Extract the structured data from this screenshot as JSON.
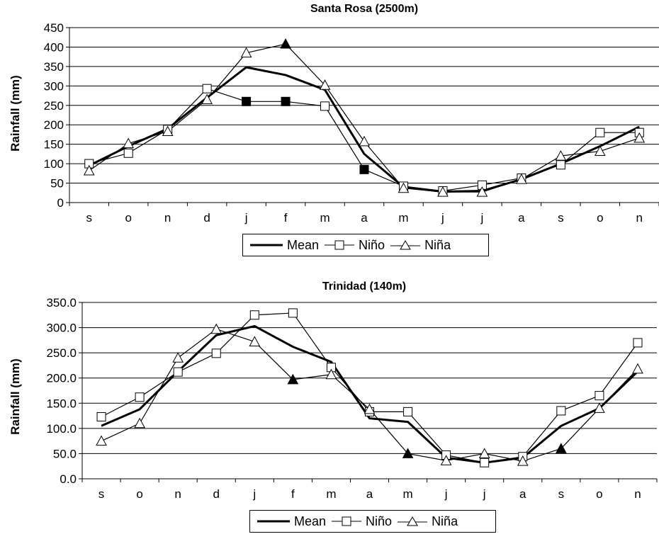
{
  "chart_data": [
    {
      "type": "line",
      "title": "Santa Rosa  (2500m)",
      "ylabel": "Rainfall (mm)",
      "xlabel": "",
      "categories": [
        "s",
        "o",
        "n",
        "d",
        "j",
        "f",
        "m",
        "a",
        "m",
        "j",
        "j",
        "a",
        "s",
        "o",
        "n"
      ],
      "ylim": [
        0,
        450
      ],
      "yticks": [
        0,
        50,
        100,
        150,
        200,
        250,
        300,
        350,
        400,
        450
      ],
      "ytick_labels": [
        "0",
        "50",
        "100",
        "150",
        "200",
        "250",
        "300",
        "350",
        "400",
        "450"
      ],
      "grid": true,
      "legend_position": "bottom",
      "series": [
        {
          "name": "Mean",
          "marker": "none",
          "values": [
            95,
            145,
            190,
            270,
            348,
            328,
            290,
            125,
            40,
            28,
            30,
            60,
            100,
            145,
            195
          ]
        },
        {
          "name": "Niño",
          "marker": "square",
          "values": [
            100,
            127,
            188,
            293,
            260,
            260,
            248,
            85,
            42,
            30,
            45,
            63,
            97,
            180,
            180
          ],
          "filled_indices": [
            4,
            5,
            7
          ]
        },
        {
          "name": "Niña",
          "marker": "triangle",
          "values": [
            82,
            152,
            183,
            265,
            385,
            408,
            302,
            157,
            37,
            27,
            27,
            60,
            120,
            132,
            166
          ],
          "filled_indices": [
            5
          ]
        }
      ]
    },
    {
      "type": "line",
      "title": "Trinidad (140m)",
      "ylabel": "Rainfall (mm)",
      "xlabel": "",
      "categories": [
        "s",
        "o",
        "n",
        "d",
        "j",
        "f",
        "m",
        "a",
        "m",
        "j",
        "j",
        "a",
        "s",
        "o",
        "n"
      ],
      "ylim": [
        0,
        350
      ],
      "yticks": [
        0,
        50,
        100,
        150,
        200,
        250,
        300,
        350
      ],
      "ytick_labels": [
        "0.0",
        "50.0",
        "100.0",
        "150.0",
        "200.0",
        "250.0",
        "300.0",
        "350.0"
      ],
      "grid": true,
      "legend_position": "bottom",
      "series": [
        {
          "name": "Mean",
          "marker": "none",
          "values": [
            105,
            138,
            213,
            285,
            303,
            262,
            232,
            120,
            113,
            42,
            32,
            42,
            105,
            140,
            213
          ]
        },
        {
          "name": "Niño",
          "marker": "square",
          "values": [
            123,
            162,
            212,
            249,
            325,
            329,
            221,
            133,
            133,
            47,
            32,
            44,
            135,
            165,
            270
          ],
          "filled_indices": []
        },
        {
          "name": "Niña",
          "marker": "triangle",
          "values": [
            75,
            110,
            240,
            297,
            272,
            197,
            207,
            138,
            50,
            36,
            50,
            35,
            60,
            140,
            218
          ],
          "filled_indices": [
            5,
            8,
            12
          ]
        }
      ]
    }
  ]
}
